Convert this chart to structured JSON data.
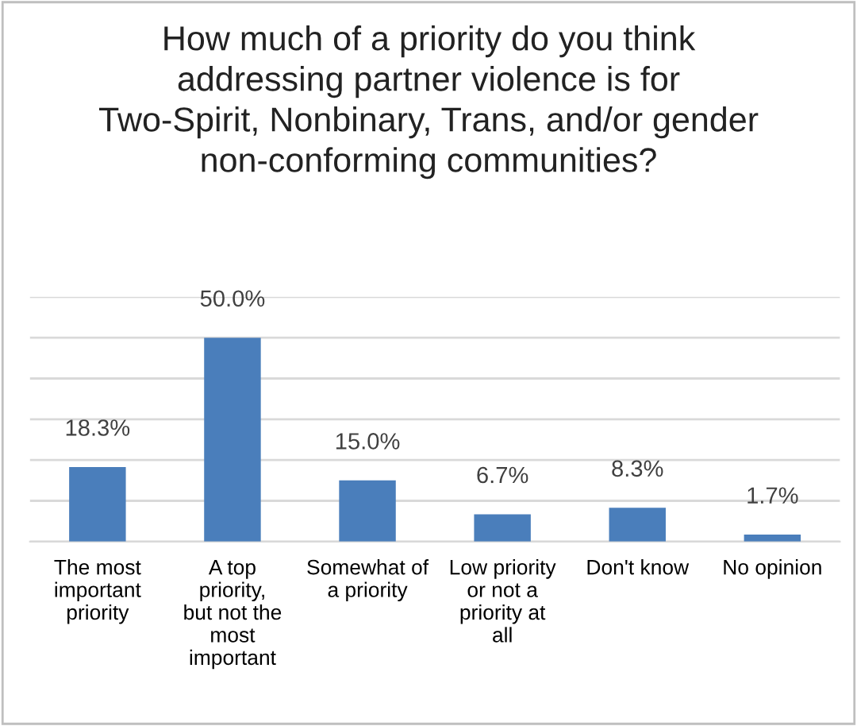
{
  "chart_data": {
    "type": "bar",
    "title": "How much of a priority do you think addressing partner violence is for Two-Spirit, Nonbinary, Trans, and/or gender non-conforming communities?",
    "categories": [
      "The most important priority",
      "A top priority, but not the most important",
      "Somewhat of a priority",
      "Low priority or not a priority at all",
      "Don't know",
      "No opinion"
    ],
    "values": [
      18.3,
      50.0,
      15.0,
      6.7,
      8.3,
      1.7
    ],
    "value_labels": [
      "18.3%",
      "50.0%",
      "15.0%",
      "6.7%",
      "8.3%",
      "1.7%"
    ],
    "color": "#4a7ebb",
    "ylim": [
      0,
      60
    ],
    "yticks": [
      {
        "value": 0,
        "label": null
      },
      {
        "value": 10,
        "label": null
      },
      {
        "value": 20,
        "label": null
      },
      {
        "value": 30,
        "label": null
      },
      {
        "value": 40,
        "label": null
      },
      {
        "value": 50,
        "label": null
      },
      {
        "value": 60,
        "label": null
      }
    ],
    "tick_labels": "x",
    "grid": "y",
    "legend": false
  }
}
